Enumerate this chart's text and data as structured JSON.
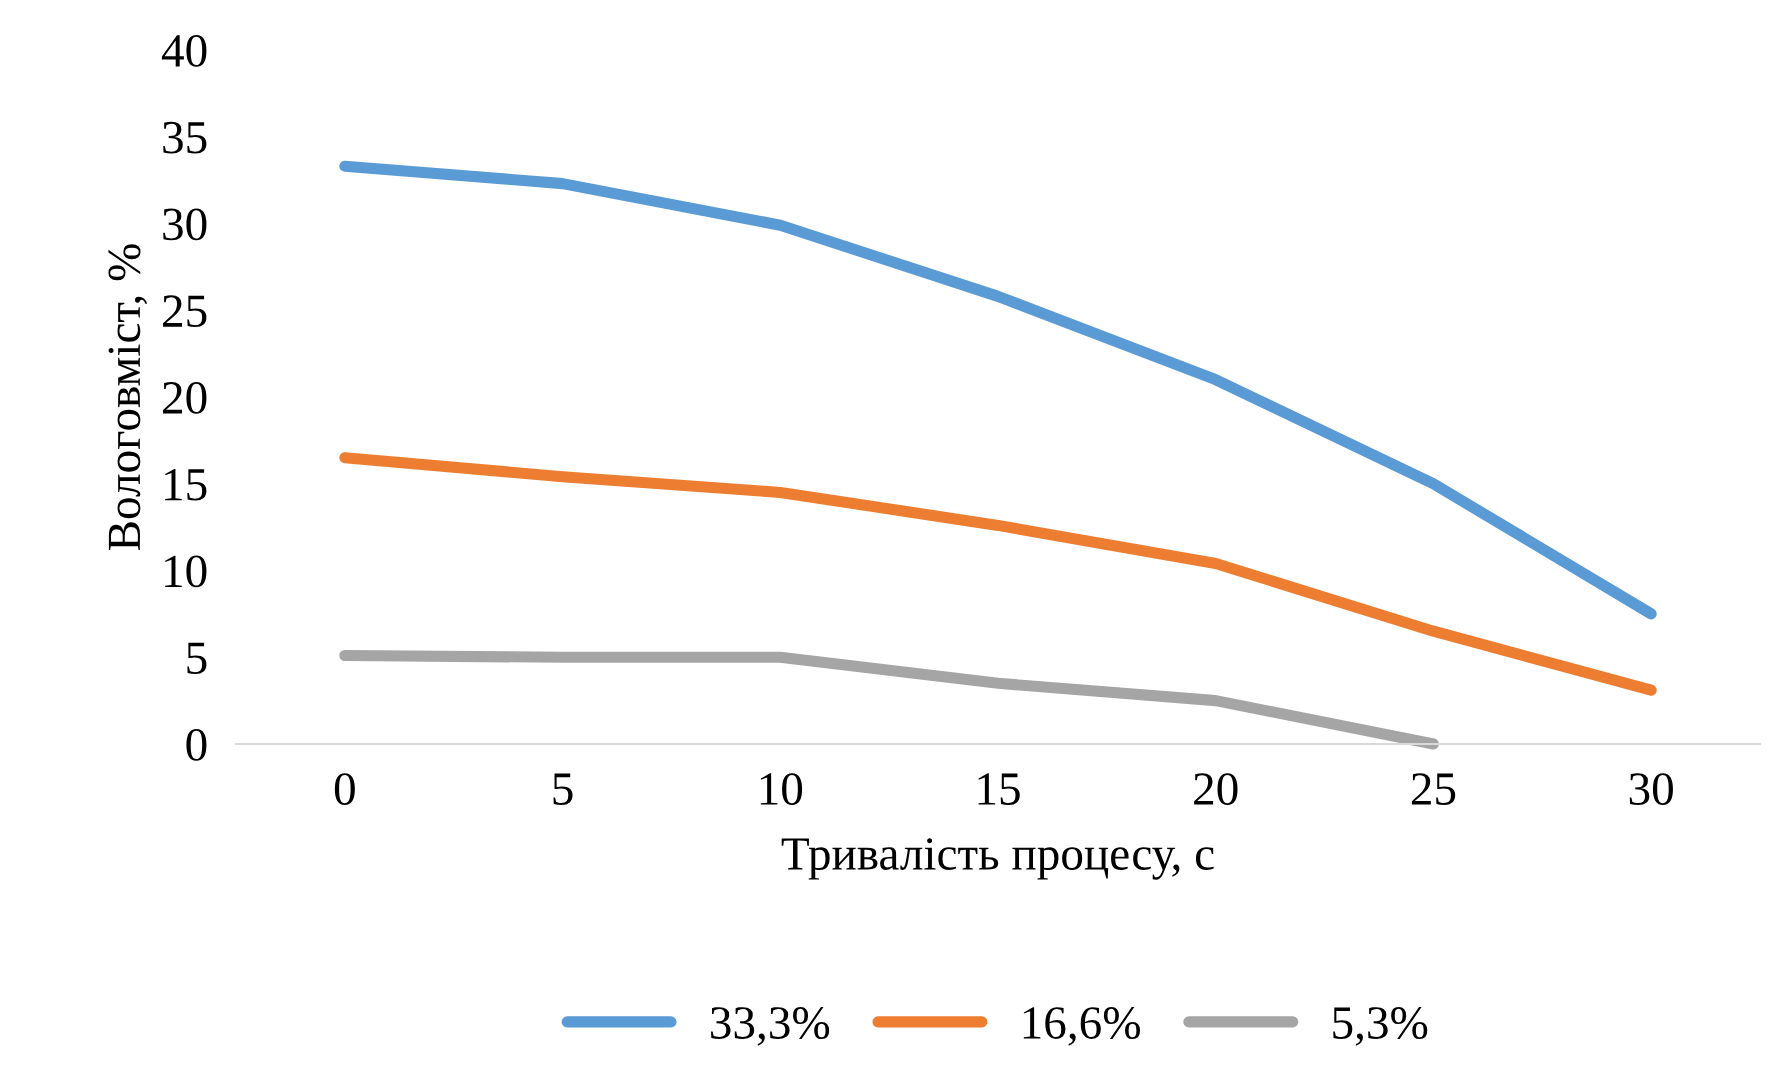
{
  "chart_data": {
    "type": "line",
    "xlabel": "Тривалість процесу, с",
    "ylabel": "Вологовміст, %",
    "categories": [
      "0",
      "5",
      "10",
      "15",
      "20",
      "25",
      "30"
    ],
    "series": [
      {
        "name": "33,3%",
        "color": "#5b9bd5",
        "values": [
          33.3,
          32.3,
          29.9,
          25.8,
          21.0,
          15.0,
          7.5
        ]
      },
      {
        "name": "16,6%",
        "color": "#ed7d31",
        "values": [
          16.5,
          15.4,
          14.5,
          12.6,
          10.4,
          6.5,
          3.1
        ]
      },
      {
        "name": "5,3%",
        "color": "#a5a5a5",
        "values": [
          5.1,
          5.0,
          5.0,
          3.5,
          2.5,
          0,
          null
        ]
      }
    ],
    "ylim": [
      0,
      40
    ],
    "yticks": [
      0,
      5,
      10,
      15,
      20,
      25,
      30,
      35,
      40
    ],
    "grid": false,
    "legend": "bottom",
    "marker": "none",
    "line_style": "solid"
  }
}
